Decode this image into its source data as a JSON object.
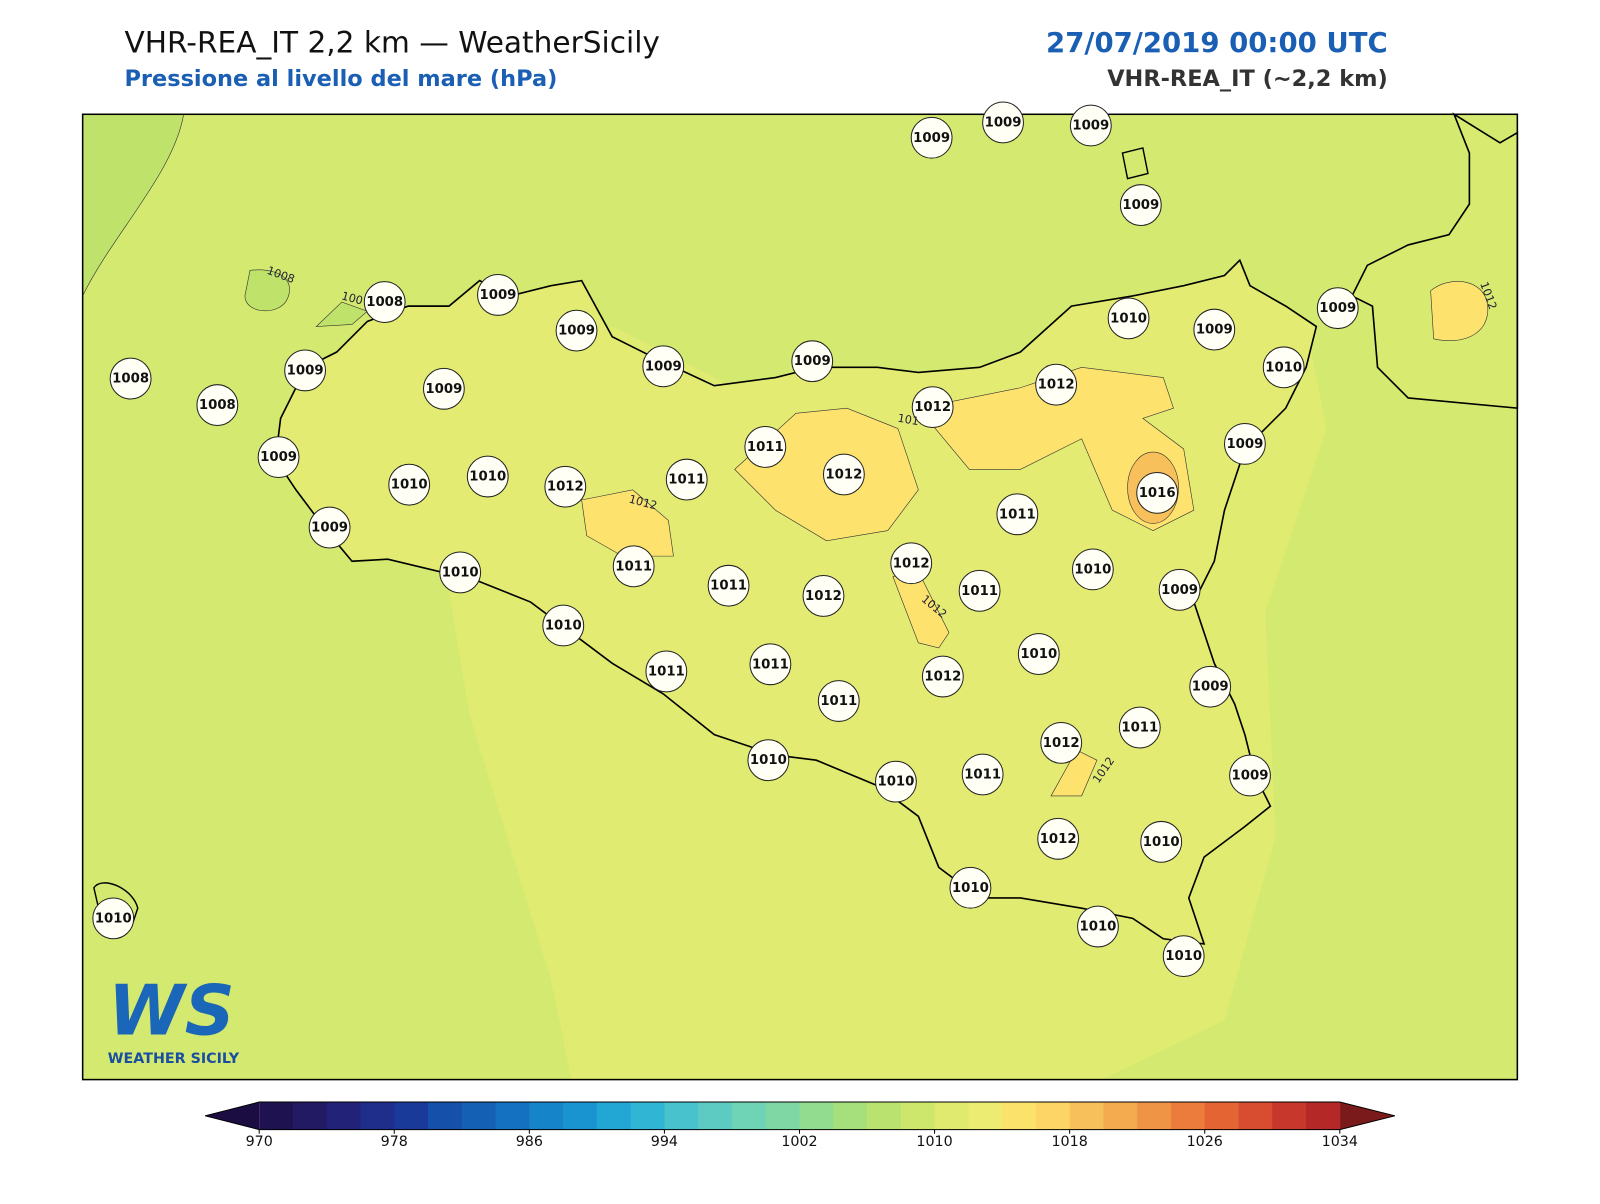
{
  "header": {
    "title": "VHR-REA_IT 2,2 km — WeatherSicily",
    "subtitle": "Pressione al livello del mare (hPa)",
    "datetime": "27/07/2019 00:00 UTC",
    "model": "VHR-REA_IT (~2,2 km)"
  },
  "map": {
    "stations": [
      "1009",
      "1009",
      "1009",
      "1009",
      "1008",
      "1009",
      "1009",
      "1009",
      "1009",
      "1010",
      "1009",
      "1009",
      "1010",
      "1008",
      "1009",
      "1008",
      "1009",
      "1012",
      "1012",
      "1011",
      "1009",
      "1009",
      "1010",
      "1010",
      "1012",
      "1011",
      "1012",
      "1016",
      "1011",
      "1009",
      "1010",
      "1011",
      "1011",
      "1012",
      "1012",
      "1011",
      "1010",
      "1009",
      "1010",
      "1010",
      "1011",
      "1011",
      "1012",
      "1009",
      "1011",
      "1011",
      "1012",
      "1010",
      "1010",
      "1011",
      "1009",
      "1012",
      "1010",
      "1010",
      "1010",
      "1010",
      "1010"
    ],
    "contour_labels": [
      "1008",
      "100",
      "1012",
      "101",
      "1012",
      "1012",
      "1012"
    ]
  },
  "logo": {
    "mark": "WS",
    "name": "WEATHER SICILY"
  },
  "colorbar": {
    "range": [
      970,
      1034
    ],
    "ticks": [
      970,
      978,
      986,
      994,
      1002,
      1010,
      1018,
      1026,
      1034
    ],
    "colors": [
      "#1e1250",
      "#221a63",
      "#222378",
      "#1f2e8a",
      "#1a3a9a",
      "#1550aa",
      "#1460b5",
      "#1470c0",
      "#1684c9",
      "#1a94d0",
      "#22a6d4",
      "#30b6d4",
      "#48c2cc",
      "#5ecbc2",
      "#6fd3b6",
      "#7fd8a4",
      "#92dc90",
      "#a6e07c",
      "#bae26f",
      "#cde76c",
      "#dfea6e",
      "#eceb72",
      "#fbe36b",
      "#fdd466",
      "#f8c05a",
      "#f4aa4f",
      "#ef9444",
      "#eb7c3b",
      "#e46434",
      "#d84c30",
      "#c8372c",
      "#b52828"
    ],
    "extend_colors": [
      "#1b0c41",
      "#7a1a1a"
    ]
  }
}
